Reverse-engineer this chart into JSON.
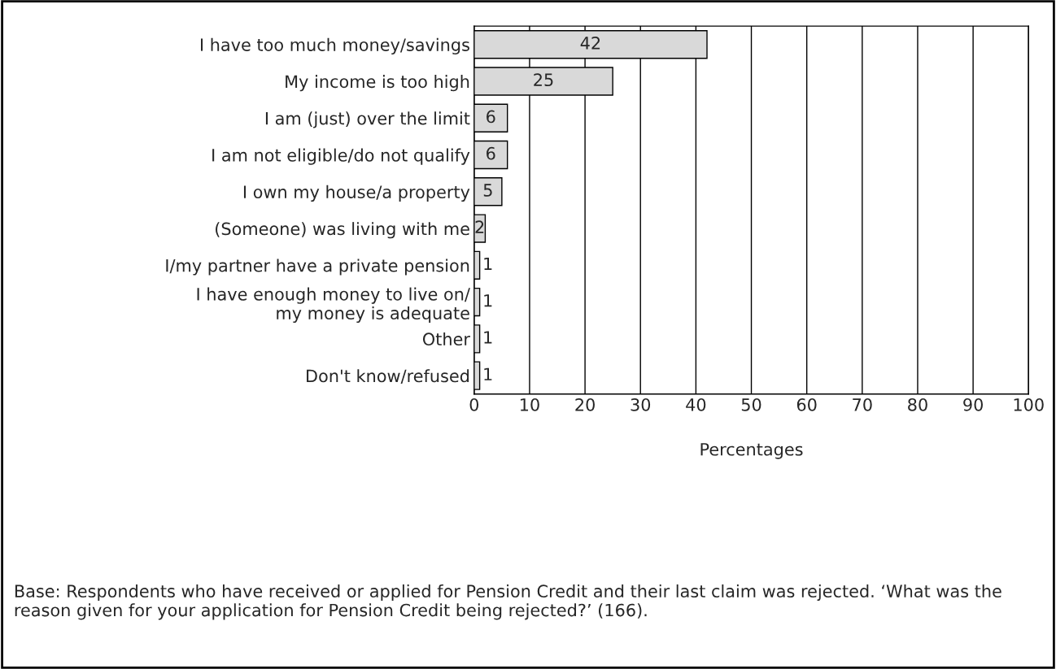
{
  "chart_data": {
    "type": "bar",
    "orientation": "horizontal",
    "categories": [
      "I have too much money/savings",
      "My income is too high",
      "I am (just) over the limit",
      "I am not eligible/do not qualify",
      "I own my house/a property",
      "(Someone) was living with me",
      "I/my partner have a private pension",
      "I have enough money to live on/\nmy money is adequate",
      "Other",
      "Don't know/refused"
    ],
    "values": [
      42,
      25,
      6,
      6,
      5,
      2,
      1,
      1,
      1,
      1
    ],
    "color": "#d9d9d9",
    "xlim": [
      0,
      100
    ],
    "xticks": [
      0,
      10,
      20,
      30,
      40,
      50,
      60,
      70,
      80,
      90,
      100
    ],
    "xlabel": "Percentages",
    "grid": "x",
    "data_labels": true,
    "annotations": [
      "Base: Respondents who have received or applied for Pension Credit and their last claim was rejected. ‘What was the reason given for your application for Pension Credit being rejected?’ (166)."
    ]
  }
}
